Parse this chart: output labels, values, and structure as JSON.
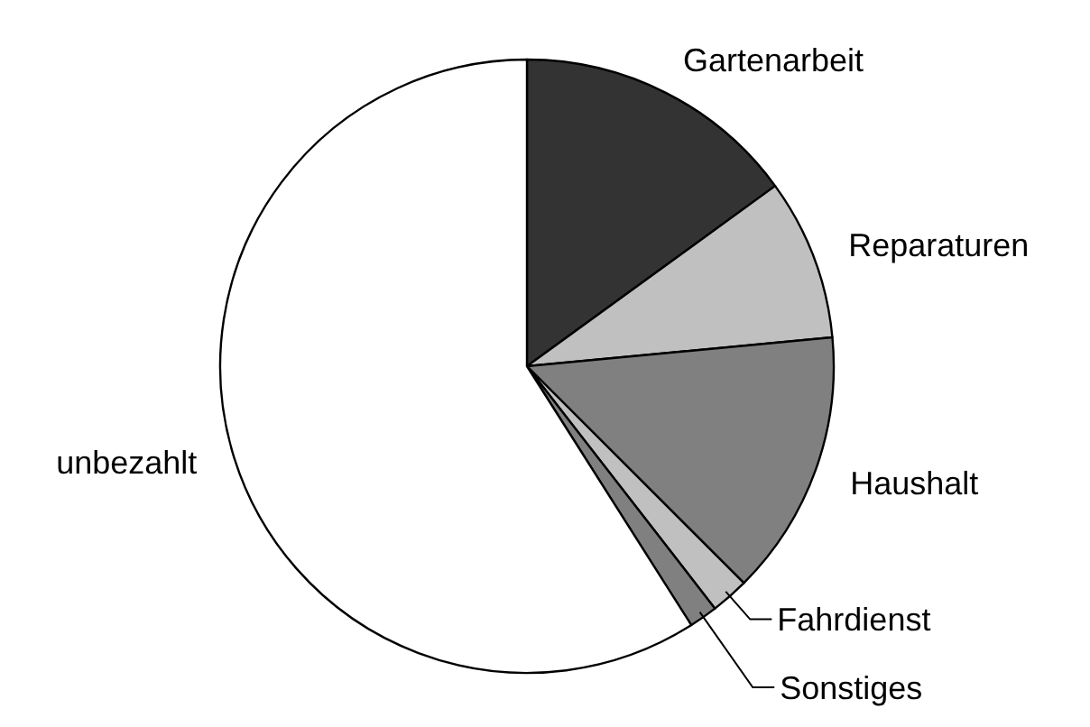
{
  "chart_data": {
    "type": "pie",
    "categories": [
      "Gartenarbeit",
      "Reparaturen",
      "Haushalt",
      "Fahrdienst",
      "Sonstiges",
      "unbezahlt"
    ],
    "values": [
      15,
      8.5,
      14,
      2,
      1.5,
      59
    ],
    "colors": [
      "#333333",
      "#c0c0c0",
      "#808080",
      "#c0c0c0",
      "#808080",
      "#ffffff"
    ]
  }
}
